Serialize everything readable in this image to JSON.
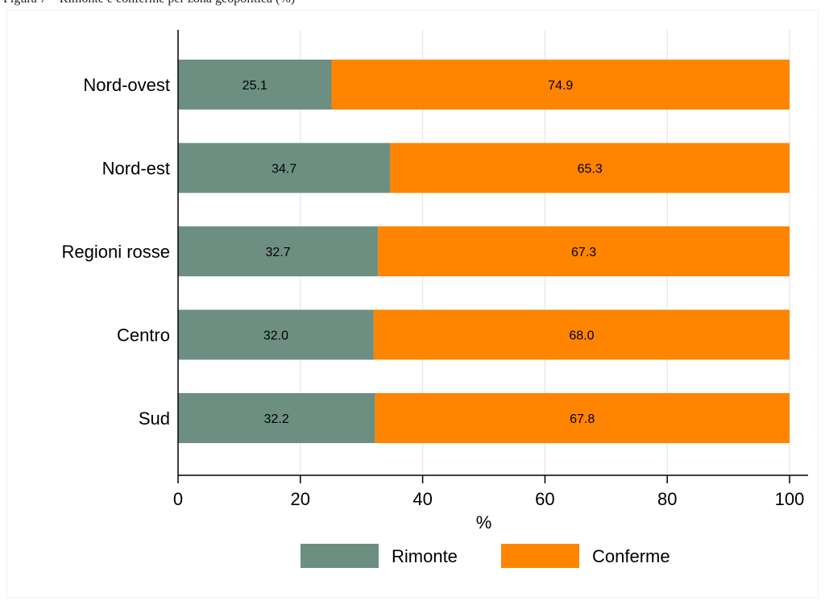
{
  "header": {
    "text": "Figura 7 – Rimonte e conferme per zona geopolitica (%)"
  },
  "chart_data": {
    "type": "bar",
    "orientation": "horizontal",
    "stacked": true,
    "categories": [
      "Nord-ovest",
      "Nord-est",
      "Regioni rosse",
      "Centro",
      "Sud"
    ],
    "series": [
      {
        "name": "Rimonte",
        "values": [
          25.1,
          34.7,
          32.7,
          32.0,
          32.2
        ],
        "labels": [
          "25.1",
          "34.7",
          "32.7",
          "32.0",
          "32.2"
        ],
        "color": "#6d8f82"
      },
      {
        "name": "Conferme",
        "values": [
          74.9,
          65.3,
          67.3,
          68.0,
          67.8
        ],
        "labels": [
          "74.9",
          "65.3",
          "67.3",
          "68.0",
          "67.8"
        ],
        "color": "#ff8400"
      }
    ],
    "xlabel": "%",
    "xlim": [
      0,
      100
    ],
    "xticks": [
      0,
      20,
      40,
      60,
      80,
      100
    ],
    "grid": true,
    "legend": "bottom"
  }
}
